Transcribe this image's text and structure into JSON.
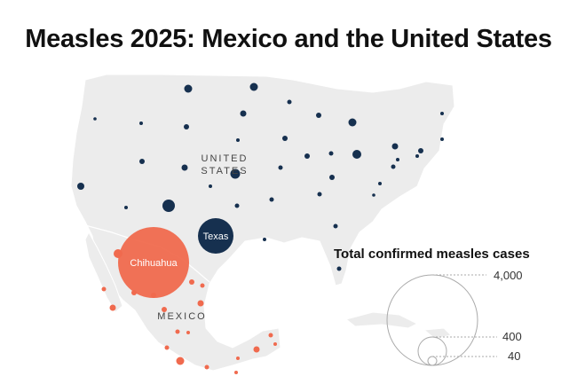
{
  "title": "Measles 2025: Mexico and the United States",
  "labels": {
    "us_line1": "UNITED",
    "us_line2": "STATES",
    "mexico": "MEXICO",
    "texas": "Texas",
    "chihuahua": "Chihuahua"
  },
  "legend": {
    "title": "Total confirmed measles cases",
    "values": [
      "4,000",
      "400",
      "40"
    ]
  },
  "colors": {
    "us": "#16304f",
    "mexico": "#f06a4e",
    "land": "#ececec",
    "background": "#ffffff"
  }
}
